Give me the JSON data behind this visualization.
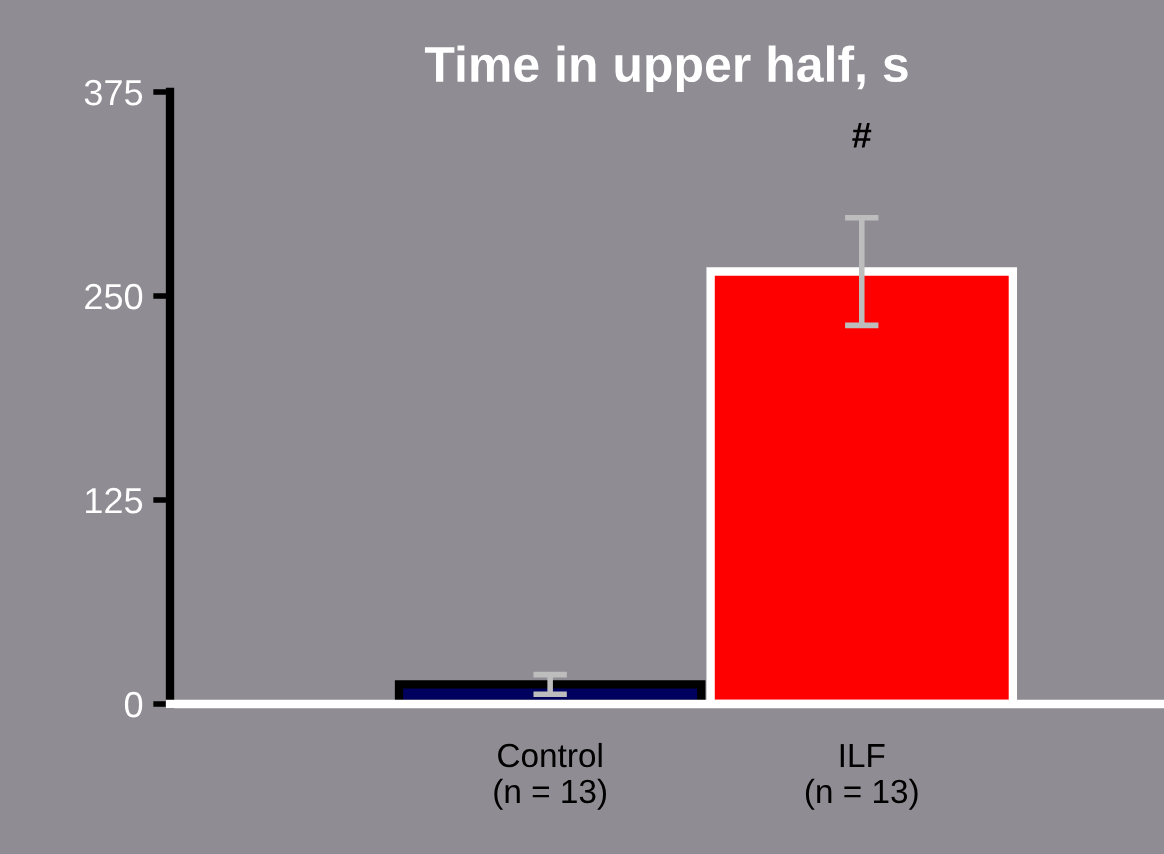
{
  "chart_data": {
    "type": "bar",
    "title": "Time in upper half, s",
    "categories": [
      "Control\n(n = 13)",
      "ILF\n(n = 13)"
    ],
    "values": [
      12,
      265
    ],
    "errors": [
      6,
      33
    ],
    "colors": [
      "#00005e",
      "#ff0000"
    ],
    "ylim": [
      0,
      375
    ],
    "yticks": [
      0,
      125,
      250,
      375
    ],
    "grid": false,
    "annotations": [
      "#"
    ]
  }
}
